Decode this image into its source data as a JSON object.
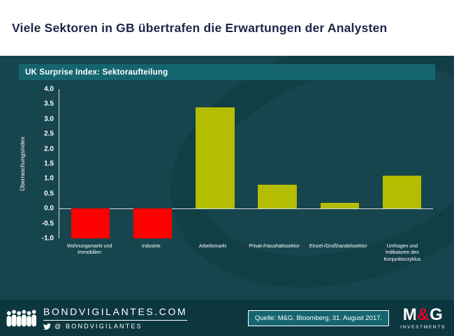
{
  "header": {
    "title": "Viele Sektoren in GB übertrafen die Erwartungen der Analysten"
  },
  "chart_data": {
    "type": "bar",
    "title": "UK Surprise Index: Sektoraufteilung",
    "ylabel": "Überraschungsindex",
    "xlabel": "",
    "ylim": [
      -1.0,
      4.0
    ],
    "ytick_labels": [
      "4.0",
      "3.5",
      "3.0",
      "2.5",
      "2.0",
      "1.5",
      "1.0",
      "0.5",
      "0.0",
      "-0.5",
      "-1.0"
    ],
    "grid": false,
    "legend": "none",
    "bars": [
      {
        "label": "Wohnungsmarkt und Immobilien",
        "value": -1.0,
        "color": "#fe0000"
      },
      {
        "label": "Industrie",
        "value": -1.0,
        "color": "#fe0000"
      },
      {
        "label": "Arbeitsmarkt",
        "value": 3.4,
        "color": "#b4bd00"
      },
      {
        "label": "Privat-/Haushaltssektor",
        "value": 0.8,
        "color": "#b4bd00"
      },
      {
        "label": "Einzel-/Großhandelssektor",
        "value": 0.2,
        "color": "#b4bd00"
      },
      {
        "label": "Umfragen und Indikatoren des Konjunkturzyklus",
        "value": 1.1,
        "color": "#b4bd00"
      }
    ]
  },
  "footer": {
    "brand": "BONDVIGILANTES.COM",
    "twitter": "@ BONDVIGILANTES",
    "source": "Quelle: M&G, Bloomberg, 31. August 2017.",
    "logo_m": "M",
    "logo_amp": "&",
    "logo_g": "G",
    "logo_sub": "INVESTMENTS"
  },
  "colors": {
    "chart_background": "#17454e",
    "band_background": "#156570",
    "footer_background": "#0d373f",
    "negative_bar": "#fe0000",
    "positive_bar": "#b4bd00",
    "logo_red": "#e4002b",
    "title_text": "#1c2749"
  }
}
